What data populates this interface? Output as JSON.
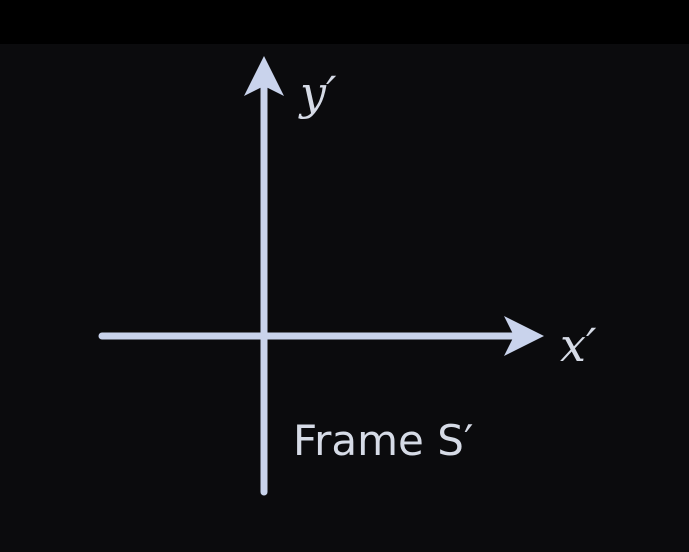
{
  "diagram": {
    "y_axis_label": "y′",
    "x_axis_label": "x′",
    "frame_label": "Frame S′"
  },
  "colors": {
    "background": "#0b0b0d",
    "axis": "#c9d3ec",
    "text": "#d6dbe6"
  }
}
